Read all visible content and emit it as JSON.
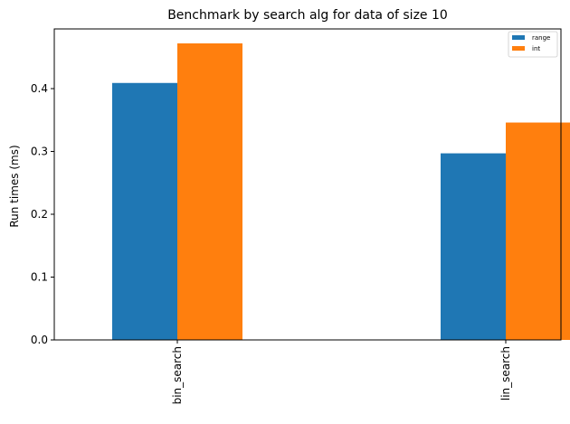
{
  "chart_data": {
    "type": "bar",
    "title": "Benchmark by search alg for data of size 10",
    "xlabel": "",
    "ylabel": "Run times (ms)",
    "categories": [
      "bin_search",
      "lin_search"
    ],
    "series": [
      {
        "name": "range",
        "color": "#1f77b4",
        "values": [
          0.409,
          0.297
        ]
      },
      {
        "name": "int",
        "color": "#ff7f0e",
        "values": [
          0.472,
          0.346
        ]
      }
    ],
    "ylim": [
      0,
      0.495
    ],
    "yticks": [
      0.0,
      0.1,
      0.2,
      0.3,
      0.4
    ],
    "ytick_labels": [
      "0.0",
      "0.1",
      "0.2",
      "0.3",
      "0.4"
    ],
    "grid": false,
    "legend_position": "top-right"
  }
}
